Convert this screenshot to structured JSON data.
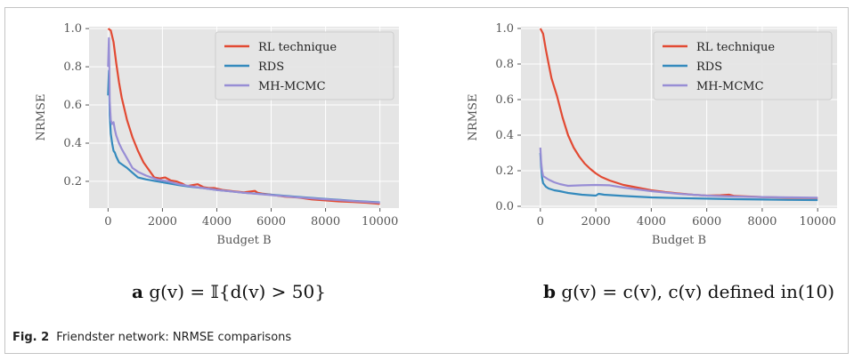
{
  "figure": {
    "caption_label": "Fig. 2",
    "caption_text": "Friendster network: NRMSE comparisons"
  },
  "colors": {
    "rl": "#e24a33",
    "rds": "#348abd",
    "mh": "#988ed5",
    "panel_bg": "#e5e5e5",
    "grid": "#ffffff"
  },
  "chart_data": [
    {
      "type": "line",
      "panel_label": "a",
      "subtitle": "g(v) = 𝕀{d(v) > 50}",
      "xlabel": "Budget B",
      "ylabel": "NRMSE",
      "xlim": [
        -700,
        10700
      ],
      "ylim": [
        0.06,
        1.01
      ],
      "xticks": [
        0,
        2000,
        4000,
        6000,
        8000,
        10000
      ],
      "yticks": [
        0.2,
        0.4,
        0.6,
        0.8,
        1.0
      ],
      "ytick_labels": [
        "0.2",
        "0.4",
        "0.6",
        "0.8",
        "1.0"
      ],
      "grid": true,
      "legend_position": "top-right",
      "series": [
        {
          "name": "RL technique",
          "color_key": "rl",
          "x": [
            0,
            100,
            200,
            300,
            400,
            500,
            700,
            900,
            1100,
            1300,
            1500,
            1700,
            1900,
            2100,
            2300,
            2500,
            2700,
            2900,
            3100,
            3300,
            3500,
            3700,
            3900,
            4200,
            4600,
            5000,
            5400,
            5500,
            5700,
            6000,
            6500,
            7000,
            7500,
            8000,
            8500,
            9000,
            9500,
            10000
          ],
          "y": [
            1.0,
            0.99,
            0.93,
            0.82,
            0.72,
            0.64,
            0.52,
            0.43,
            0.36,
            0.3,
            0.26,
            0.22,
            0.215,
            0.22,
            0.205,
            0.2,
            0.19,
            0.175,
            0.18,
            0.185,
            0.17,
            0.165,
            0.165,
            0.155,
            0.148,
            0.142,
            0.15,
            0.14,
            0.135,
            0.13,
            0.12,
            0.115,
            0.105,
            0.1,
            0.095,
            0.092,
            0.088,
            0.082
          ]
        },
        {
          "name": "RDS",
          "color_key": "rds",
          "x": [
            0,
            30,
            60,
            100,
            150,
            200,
            250,
            300,
            400,
            500,
            700,
            900,
            1100,
            1400,
            1800,
            2200,
            2600,
            3000,
            3500,
            4000,
            5000,
            6000,
            7000,
            8000,
            9000,
            10000
          ],
          "y": [
            0.65,
            0.78,
            0.55,
            0.45,
            0.4,
            0.36,
            0.35,
            0.33,
            0.3,
            0.29,
            0.27,
            0.245,
            0.22,
            0.21,
            0.2,
            0.19,
            0.18,
            0.172,
            0.165,
            0.155,
            0.14,
            0.13,
            0.118,
            0.108,
            0.098,
            0.09
          ]
        },
        {
          "name": "MH-MCMC",
          "color_key": "mh",
          "x": [
            0,
            30,
            60,
            100,
            150,
            200,
            250,
            300,
            400,
            500,
            700,
            900,
            1100,
            1400,
            1800,
            2200,
            2600,
            3000,
            3500,
            4000,
            5000,
            6000,
            7000,
            8000,
            9000,
            10000
          ],
          "y": [
            0.8,
            0.95,
            0.62,
            0.52,
            0.5,
            0.51,
            0.47,
            0.44,
            0.4,
            0.37,
            0.32,
            0.27,
            0.25,
            0.23,
            0.21,
            0.2,
            0.185,
            0.175,
            0.165,
            0.155,
            0.14,
            0.128,
            0.116,
            0.106,
            0.097,
            0.088
          ]
        }
      ]
    },
    {
      "type": "line",
      "panel_label": "b",
      "subtitle": "g(v) = c(v), c(v) defined in(10)",
      "xlabel": "Budget B",
      "ylabel": "NRMSE",
      "xlim": [
        -700,
        10700
      ],
      "ylim": [
        -0.01,
        1.01
      ],
      "xticks": [
        0,
        2000,
        4000,
        6000,
        8000,
        10000
      ],
      "yticks": [
        0.0,
        0.2,
        0.4,
        0.6,
        0.8,
        1.0
      ],
      "ytick_labels": [
        "0.0",
        "0.2",
        "0.4",
        "0.6",
        "0.8",
        "1.0"
      ],
      "grid": true,
      "legend_position": "top-right",
      "series": [
        {
          "name": "RL technique",
          "color_key": "rl",
          "x": [
            0,
            100,
            200,
            300,
            400,
            600,
            800,
            1000,
            1200,
            1400,
            1600,
            1800,
            2000,
            2200,
            2500,
            3000,
            3500,
            4000,
            4500,
            5000,
            5500,
            6000,
            6500,
            6800,
            7000,
            8000,
            9000,
            10000
          ],
          "y": [
            1.0,
            0.97,
            0.88,
            0.8,
            0.72,
            0.62,
            0.5,
            0.4,
            0.33,
            0.28,
            0.24,
            0.21,
            0.185,
            0.165,
            0.145,
            0.12,
            0.105,
            0.09,
            0.08,
            0.072,
            0.065,
            0.06,
            0.062,
            0.065,
            0.058,
            0.052,
            0.048,
            0.046
          ]
        },
        {
          "name": "RDS",
          "color_key": "rds",
          "x": [
            0,
            30,
            60,
            100,
            200,
            300,
            500,
            700,
            1000,
            1500,
            2000,
            2100,
            2300,
            3000,
            4000,
            5000,
            6000,
            7000,
            8000,
            9000,
            10000
          ],
          "y": [
            0.3,
            0.22,
            0.16,
            0.13,
            0.11,
            0.1,
            0.09,
            0.085,
            0.075,
            0.065,
            0.06,
            0.07,
            0.065,
            0.058,
            0.05,
            0.046,
            0.043,
            0.04,
            0.038,
            0.036,
            0.035
          ]
        },
        {
          "name": "MH-MCMC",
          "color_key": "mh",
          "x": [
            0,
            30,
            60,
            100,
            200,
            300,
            500,
            700,
            1000,
            1500,
            2000,
            2500,
            3000,
            4000,
            5000,
            6000,
            7000,
            8000,
            9000,
            10000
          ],
          "y": [
            0.33,
            0.25,
            0.2,
            0.17,
            0.16,
            0.15,
            0.135,
            0.125,
            0.115,
            0.118,
            0.12,
            0.118,
            0.105,
            0.085,
            0.07,
            0.06,
            0.055,
            0.052,
            0.05,
            0.048
          ]
        }
      ]
    }
  ]
}
